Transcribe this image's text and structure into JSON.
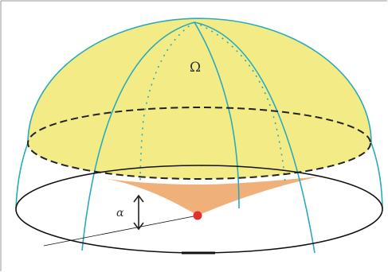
{
  "diagram": {
    "solid_angle_label": "Ω",
    "elevation_angle_label": "α"
  },
  "colors": {
    "background": "#ffffff",
    "border": "#9a9a9a",
    "dome_fill": "#f3ec86",
    "cone_fill": "#efb07a",
    "meridian": "#2aa9bf",
    "outline": "#111111",
    "observer_point": "#e03030",
    "arrow": "#222222"
  }
}
